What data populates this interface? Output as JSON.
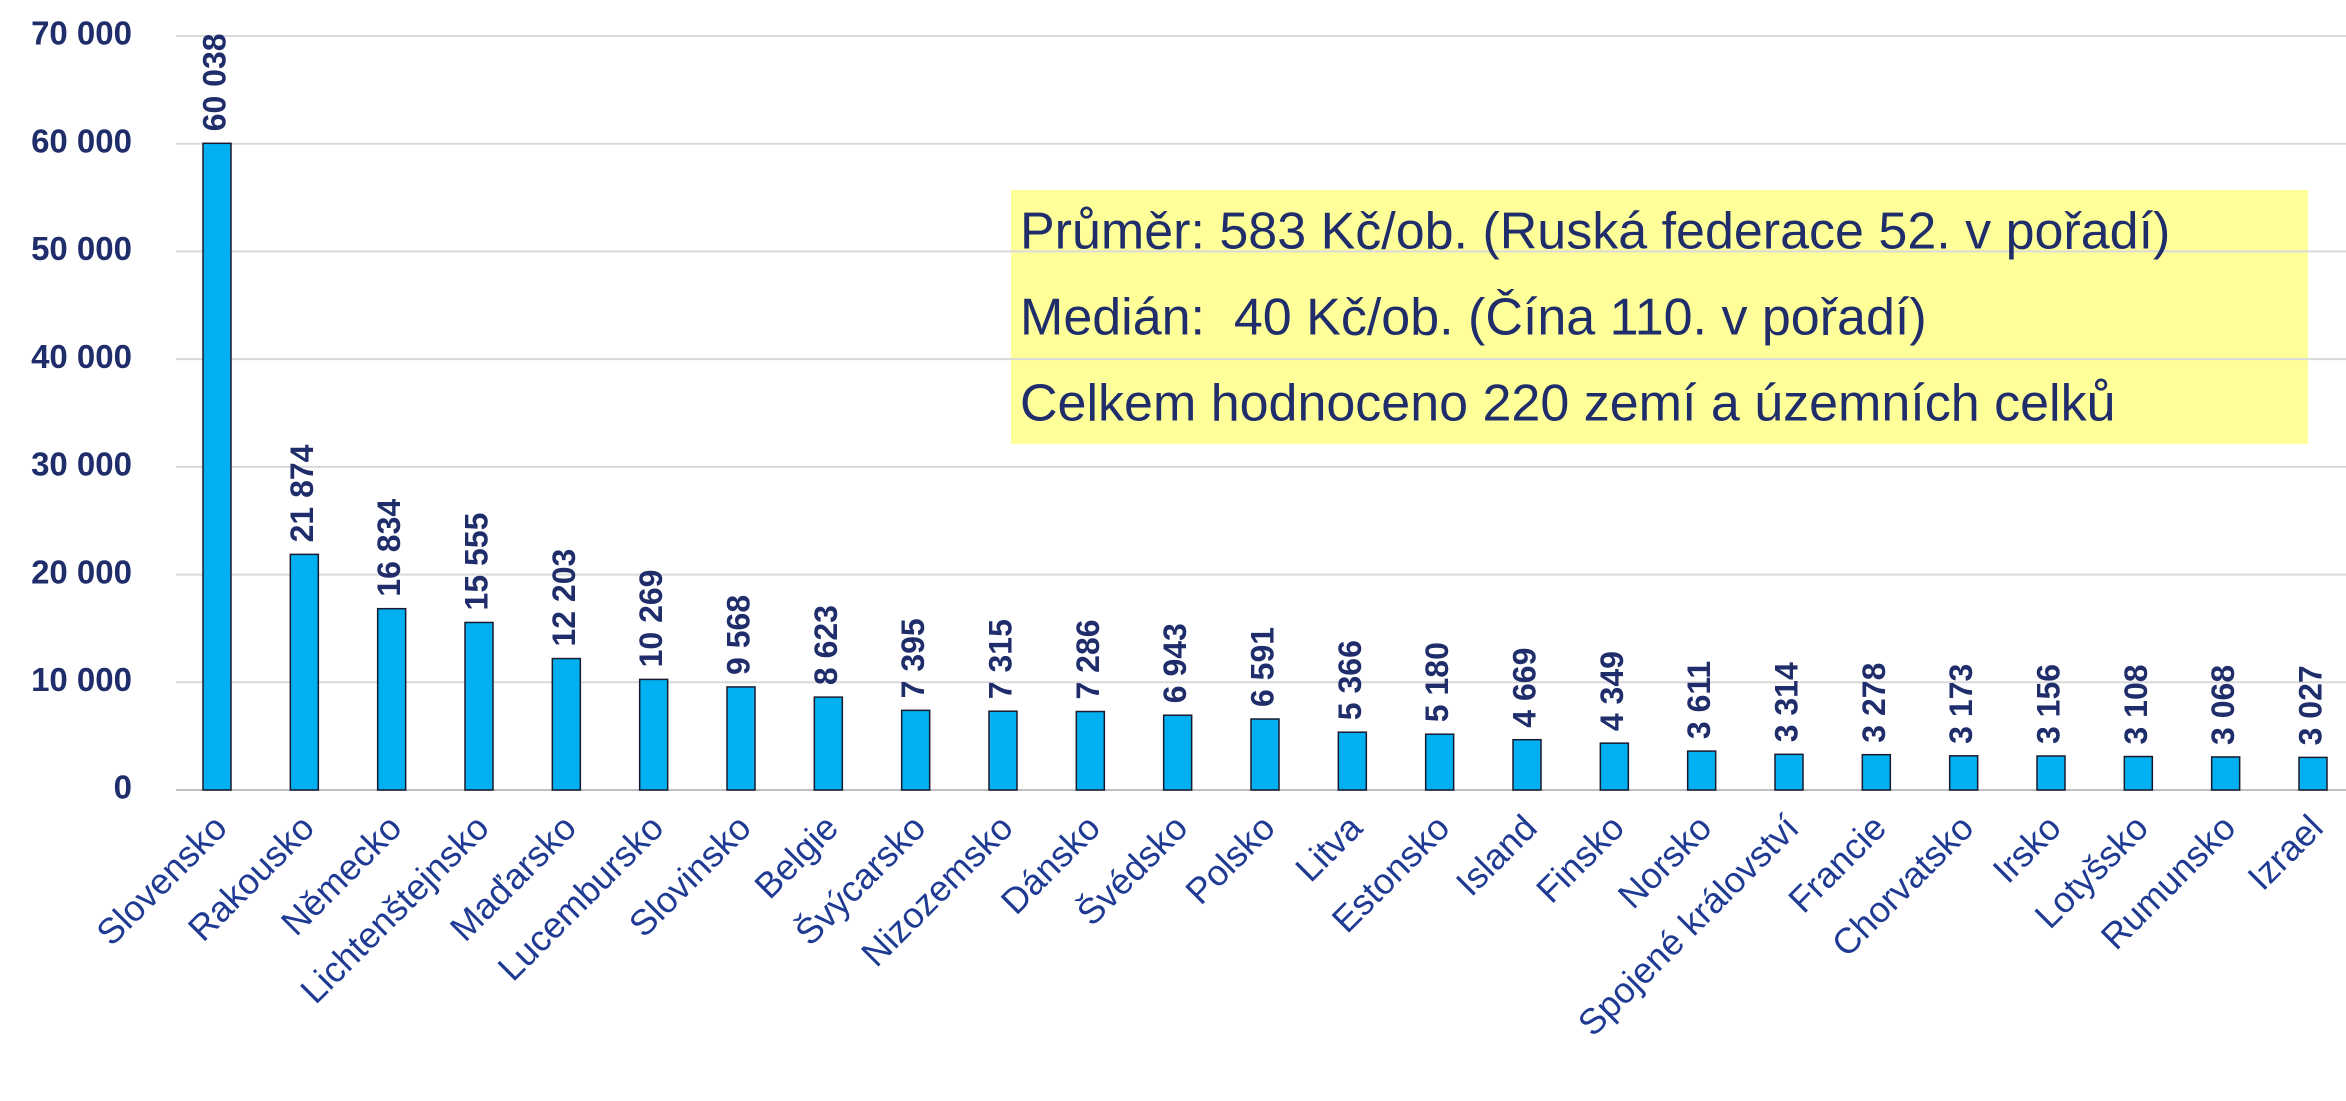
{
  "chart_data": {
    "type": "bar",
    "categories": [
      "Slovensko",
      "Rakousko",
      "Německo",
      "Lichtenštejnsko",
      "Maďarsko",
      "Lucembursko",
      "Slovinsko",
      "Belgie",
      "Švýcarsko",
      "Nizozemsko",
      "Dánsko",
      "Švédsko",
      "Polsko",
      "Litva",
      "Estonsko",
      "Island",
      "Finsko",
      "Norsko",
      "Spojené království",
      "Francie",
      "Chorvatsko",
      "Irsko",
      "Lotyšsko",
      "Rumunsko",
      "Izrael"
    ],
    "values": [
      60038,
      21874,
      16834,
      15555,
      12203,
      10269,
      9568,
      8623,
      7395,
      7315,
      7286,
      6943,
      6591,
      5366,
      5180,
      4669,
      4349,
      3611,
      3314,
      3278,
      3173,
      3156,
      3108,
      3068,
      3027
    ],
    "value_labels": [
      "60 038",
      "21 874",
      "16 834",
      "15 555",
      "12 203",
      "10 269",
      "9 568",
      "8 623",
      "7 395",
      "7 315",
      "7 286",
      "6 943",
      "6 591",
      "5 366",
      "5 180",
      "4 669",
      "4 349",
      "3 611",
      "3 314",
      "3 278",
      "3 173",
      "3 156",
      "3 108",
      "3 068",
      "3 027"
    ],
    "color": "#00b0f0",
    "ylim": [
      0,
      70000
    ],
    "yticks": [
      0,
      {
        "value": 10000,
        "label": "10 000"
      },
      {
        "value": 20000,
        "label": "20 000"
      },
      {
        "value": 30000,
        "label": "30 000"
      },
      {
        "value": 40000,
        "label": "40 000"
      },
      {
        "value": 50000,
        "label": "50 000"
      },
      {
        "value": 60000,
        "label": "60 000"
      },
      {
        "value": 70000,
        "label": "70 000"
      }
    ],
    "grid": true,
    "annotations": [
      "Průměr: 583 Kč/ob. (Ruská federace 52. v pořadí)",
      "Medián:  40 Kč/ob. (Čína 110. v pořadí)",
      "Celkem hodnoceno 220 zemí a územních celků"
    ]
  }
}
